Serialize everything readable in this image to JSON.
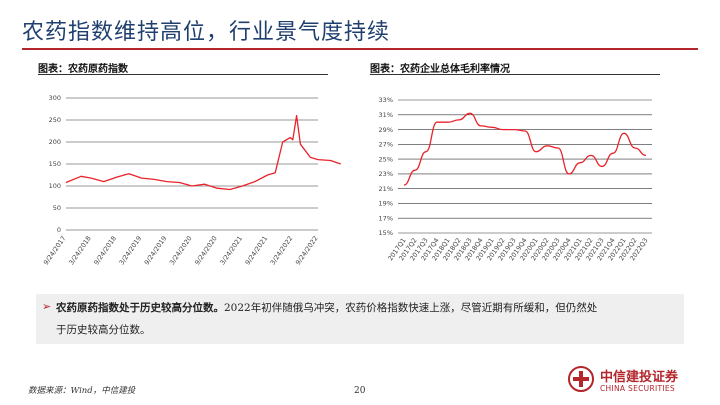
{
  "page": {
    "title": "农药指数维持高位，行业景气度持续",
    "source": "数据来源：Wind，中信建投",
    "page_number": "20",
    "accent_color": "#b3262b",
    "title_color": "#1f3f6e",
    "line_color": "#e8232a"
  },
  "logo": {
    "cn": "中信建投证券",
    "en": "CHINA SECURITIES"
  },
  "summary": {
    "bold": "农药原药指数处于历史较高分位数。",
    "text1": "2022年初伴随俄乌冲突，农药价格指数快速上涨，尽管近期有所缓和，但仍然处",
    "text2": "于历史较高分位数。"
  },
  "chart_data": [
    {
      "caption": "图表：农药原药指数",
      "type": "line",
      "ylim": [
        0,
        300
      ],
      "yticks": [
        "0",
        "50",
        "100",
        "150",
        "200",
        "250",
        "300"
      ],
      "xticks": [
        "9/24/2017",
        "3/24/2018",
        "9/24/2018",
        "3/24/2019",
        "9/24/2019",
        "3/24/2020",
        "9/24/2020",
        "3/24/2021",
        "9/24/2021",
        "3/24/2022",
        "9/24/2022"
      ],
      "grid": true,
      "legend": "none",
      "series": [
        {
          "x": [
            0.0,
            0.6,
            1.0,
            1.5,
            2.0,
            2.5,
            3.0,
            3.5,
            4.0,
            4.5,
            5.0,
            5.5,
            6.0,
            6.5,
            7.0,
            7.5,
            8.0,
            8.3,
            8.6,
            8.9,
            9.0,
            9.15,
            9.3,
            9.5,
            9.7,
            10.0,
            10.5,
            10.9
          ],
          "values": [
            108,
            122,
            118,
            110,
            120,
            128,
            118,
            115,
            110,
            108,
            100,
            104,
            95,
            92,
            100,
            110,
            125,
            130,
            200,
            210,
            205,
            260,
            195,
            180,
            165,
            160,
            158,
            150
          ]
        }
      ]
    },
    {
      "caption": "图表：农药企业总体毛利率情况",
      "type": "line",
      "ylim": [
        15,
        33
      ],
      "yticks": [
        "15%",
        "17%",
        "19%",
        "21%",
        "23%",
        "25%",
        "27%",
        "29%",
        "31%",
        "33%"
      ],
      "xticks": [
        "2017Q1",
        "2017Q2",
        "2017Q3",
        "2017Q4",
        "2018Q1",
        "2018Q2",
        "2018Q3",
        "2018Q4",
        "2019Q1",
        "2019Q2",
        "2019Q3",
        "2019Q4",
        "2020Q1",
        "2020Q2",
        "2020Q3",
        "2020Q4",
        "2021Q1",
        "2021Q2",
        "2021Q3",
        "2021Q4",
        "2022Q1",
        "2022Q2",
        "2022Q3"
      ],
      "grid": true,
      "legend": "none",
      "series": [
        {
          "values": [
            21.5,
            23.5,
            26.0,
            30.0,
            30.0,
            30.3,
            31.2,
            29.5,
            29.3,
            29.0,
            29.0,
            28.8,
            26.0,
            26.8,
            26.5,
            23.0,
            24.5,
            25.5,
            24.0,
            25.8,
            28.5,
            26.5,
            25.5
          ]
        }
      ]
    }
  ]
}
